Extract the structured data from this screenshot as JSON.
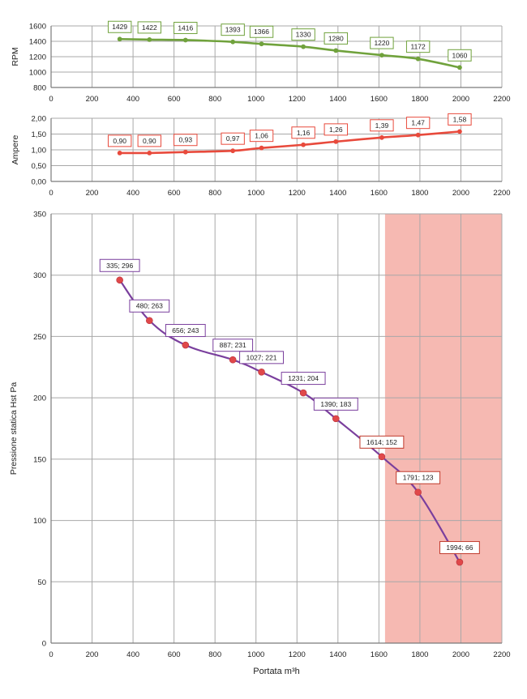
{
  "chart_data": [
    {
      "type": "line",
      "ylabel": "RPM",
      "xlim": [
        0,
        2200
      ],
      "ylim": [
        800,
        1600
      ],
      "xticks": [
        0,
        200,
        400,
        600,
        800,
        1000,
        1200,
        1400,
        1600,
        1800,
        2000,
        2200
      ],
      "yticks": [
        800,
        1000,
        1200,
        1400,
        1600
      ],
      "grid": true,
      "series": [
        {
          "color": "#70a23c",
          "label_border": "#70a23c",
          "x": [
            335,
            480,
            656,
            887,
            1027,
            1231,
            1390,
            1614,
            1791,
            1994
          ],
          "y": [
            1429,
            1422,
            1416,
            1393,
            1366,
            1330,
            1280,
            1220,
            1172,
            1060
          ],
          "labels": [
            "1429",
            "1422",
            "1416",
            "1393",
            "1366",
            "1330",
            "1280",
            "1220",
            "1172",
            "1060"
          ]
        }
      ]
    },
    {
      "type": "line",
      "ylabel": "Ampere",
      "xlim": [
        0,
        2200
      ],
      "ylim": [
        0,
        2
      ],
      "xticks": [
        0,
        200,
        400,
        600,
        800,
        1000,
        1200,
        1400,
        1600,
        1800,
        2000,
        2200
      ],
      "yticks": [
        0,
        0.5,
        1,
        1.5,
        2
      ],
      "ytick_labels": [
        "0,00",
        "0,50",
        "1,00",
        "1,50",
        "2,00"
      ],
      "grid": true,
      "series": [
        {
          "color": "#e84a3c",
          "label_border": "#e84a3c",
          "x": [
            335,
            480,
            656,
            887,
            1027,
            1231,
            1390,
            1614,
            1791,
            1994
          ],
          "y": [
            0.9,
            0.9,
            0.93,
            0.97,
            1.06,
            1.16,
            1.26,
            1.39,
            1.47,
            1.58
          ],
          "labels": [
            "0,90",
            "0,90",
            "0,93",
            "0,97",
            "1,06",
            "1,16",
            "1,26",
            "1,39",
            "1,47",
            "1,58"
          ]
        }
      ]
    },
    {
      "type": "line",
      "xlabel": "Portata m³h",
      "ylabel": "Pressione statica Hst Pa",
      "xlim": [
        0,
        2200
      ],
      "ylim": [
        0,
        350
      ],
      "xticks": [
        0,
        200,
        400,
        600,
        800,
        1000,
        1200,
        1400,
        1600,
        1800,
        2000,
        2200
      ],
      "yticks": [
        0,
        50,
        100,
        150,
        200,
        250,
        300,
        350
      ],
      "grid": true,
      "shaded_region": {
        "x_from": 1614,
        "x_to": 2200,
        "color": "#f6b9b2"
      },
      "series": [
        {
          "color": "#7a3f9d",
          "marker_color": "#e0484a",
          "label_border": "#7a3f9d",
          "label_border_alt": "#c0392b",
          "alt_from_index": 7,
          "x": [
            335,
            480,
            656,
            887,
            1027,
            1231,
            1390,
            1614,
            1791,
            1994
          ],
          "y": [
            296,
            263,
            243,
            231,
            221,
            204,
            183,
            152,
            123,
            66
          ],
          "labels": [
            "335; 296",
            "480; 263",
            "656; 243",
            "887; 231",
            "1027; 221",
            "1231; 204",
            "1390; 183",
            "1614; 152",
            "1791; 123",
            "1994; 66"
          ]
        }
      ]
    }
  ]
}
